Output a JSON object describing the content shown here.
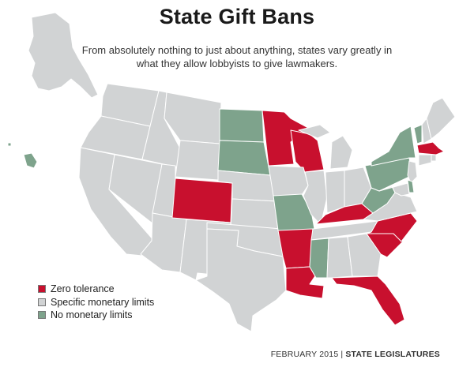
{
  "header": {
    "title": "State Gift Bans",
    "subtitle": "From absolutely nothing to just about anything, states vary greatly in what they allow lobbyists to give lawmakers."
  },
  "colors": {
    "zero": "#c8102e",
    "specific": "#d1d3d4",
    "none": "#7ea38c",
    "border": "#ffffff"
  },
  "legend": {
    "items": [
      {
        "label": "Zero tolerance",
        "category": "zero"
      },
      {
        "label": "Specific monetary limits",
        "category": "specific"
      },
      {
        "label": "No monetary limits",
        "category": "none"
      }
    ]
  },
  "states": {
    "zero": [
      "Colorado",
      "Minnesota",
      "Wisconsin",
      "Massachusetts",
      "Kentucky",
      "Arkansas",
      "Louisiana",
      "North Carolina",
      "South Carolina",
      "Florida"
    ],
    "none": [
      "North Dakota",
      "South Dakota",
      "Missouri",
      "Mississippi",
      "New York",
      "Vermont",
      "Pennsylvania",
      "West Virginia",
      "Delaware",
      "Hawaii"
    ]
  },
  "footer": {
    "date": "FEBRUARY 2015",
    "separator": "|",
    "publication": "STATE LEGISLATURES"
  }
}
